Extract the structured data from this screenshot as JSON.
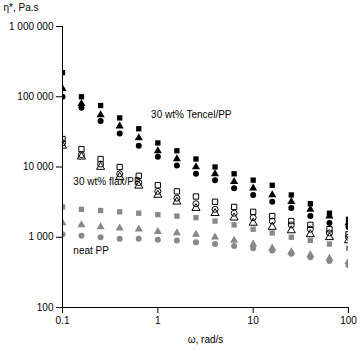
{
  "chart_data": {
    "type": "scatter",
    "log": true,
    "grid": false,
    "xlabel": "ω, rad/s",
    "ylabel": "η*, Pa.s",
    "xlim": [
      0.1,
      100
    ],
    "ylim": [
      100,
      1000000
    ],
    "xticks": [
      0.1,
      1,
      10,
      100
    ],
    "yticks": [
      100,
      {
        "value": 1000,
        "label": "1 000"
      },
      {
        "value": 10000,
        "label": "10 000"
      },
      {
        "value": 100000,
        "label": "100 000"
      },
      {
        "value": 1000000,
        "label": "1 000 000"
      }
    ],
    "x": [
      0.1,
      0.158,
      0.251,
      0.398,
      0.631,
      1.0,
      1.585,
      2.512,
      3.981,
      6.31,
      10.0,
      15.85,
      25.12,
      39.81,
      63.1,
      100.0
    ],
    "series": [
      {
        "color": "#000000",
        "marker": "square",
        "values": [
          220000,
          100000,
          75000,
          50000,
          35000,
          22000,
          17000,
          13000,
          10000,
          8000,
          6500,
          5500,
          4000,
          3000,
          2200,
          1800
        ]
      },
      {
        "color": "#000000",
        "marker": "triangle",
        "values": [
          130000,
          80000,
          55000,
          38000,
          26000,
          17000,
          13000,
          10000,
          8000,
          6200,
          5000,
          4000,
          3200,
          2500,
          2000,
          1600
        ]
      },
      {
        "color": "#000000",
        "marker": "circle",
        "values": [
          100000,
          70000,
          45000,
          30000,
          20000,
          14000,
          10500,
          8000,
          6500,
          5000,
          4000,
          3200,
          2600,
          2000,
          1600,
          1400
        ]
      },
      {
        "color": "#000000",
        "marker": "square-open",
        "values": [
          25000,
          18000,
          13000,
          10000,
          7500,
          5500,
          4500,
          3800,
          3200,
          2700,
          2300,
          2000,
          1700,
          1500,
          1300,
          1100
        ]
      },
      {
        "color": "#000000",
        "marker": "circle-open",
        "values": [
          22000,
          15000,
          11000,
          8000,
          6000,
          4500,
          3600,
          3000,
          2500,
          2200,
          1900,
          1700,
          1500,
          1300,
          1150,
          1000
        ]
      },
      {
        "color": "#000000",
        "marker": "triangle-open",
        "values": [
          20000,
          14000,
          10000,
          7200,
          5400,
          4000,
          3200,
          2600,
          2200,
          1900,
          1600,
          1400,
          1250,
          1100,
          1000,
          900
        ]
      },
      {
        "color": "#888888",
        "marker": "square",
        "values": [
          2700,
          2500,
          2400,
          2300,
          2200,
          2100,
          2000,
          1900,
          1700,
          1500,
          1300,
          1150,
          1000,
          900,
          800,
          700
        ]
      },
      {
        "color": "#888888",
        "marker": "triangle",
        "values": [
          1600,
          1500,
          1400,
          1350,
          1300,
          1200,
          1150,
          1100,
          1000,
          900,
          800,
          700,
          620,
          560,
          500,
          450
        ]
      },
      {
        "color": "#888888",
        "marker": "circle",
        "values": [
          1100,
          1050,
          1000,
          950,
          950,
          920,
          900,
          850,
          800,
          750,
          700,
          650,
          580,
          520,
          460,
          400
        ]
      }
    ],
    "annotations": [
      {
        "text": "30 wt% Tencel/PP",
        "x": 0.85,
        "y": 55000
      },
      {
        "text": "30 wt% flax/PP",
        "x": 0.13,
        "y": 6200
      },
      {
        "text": "neat PP",
        "x": 0.13,
        "y": 640
      }
    ]
  }
}
